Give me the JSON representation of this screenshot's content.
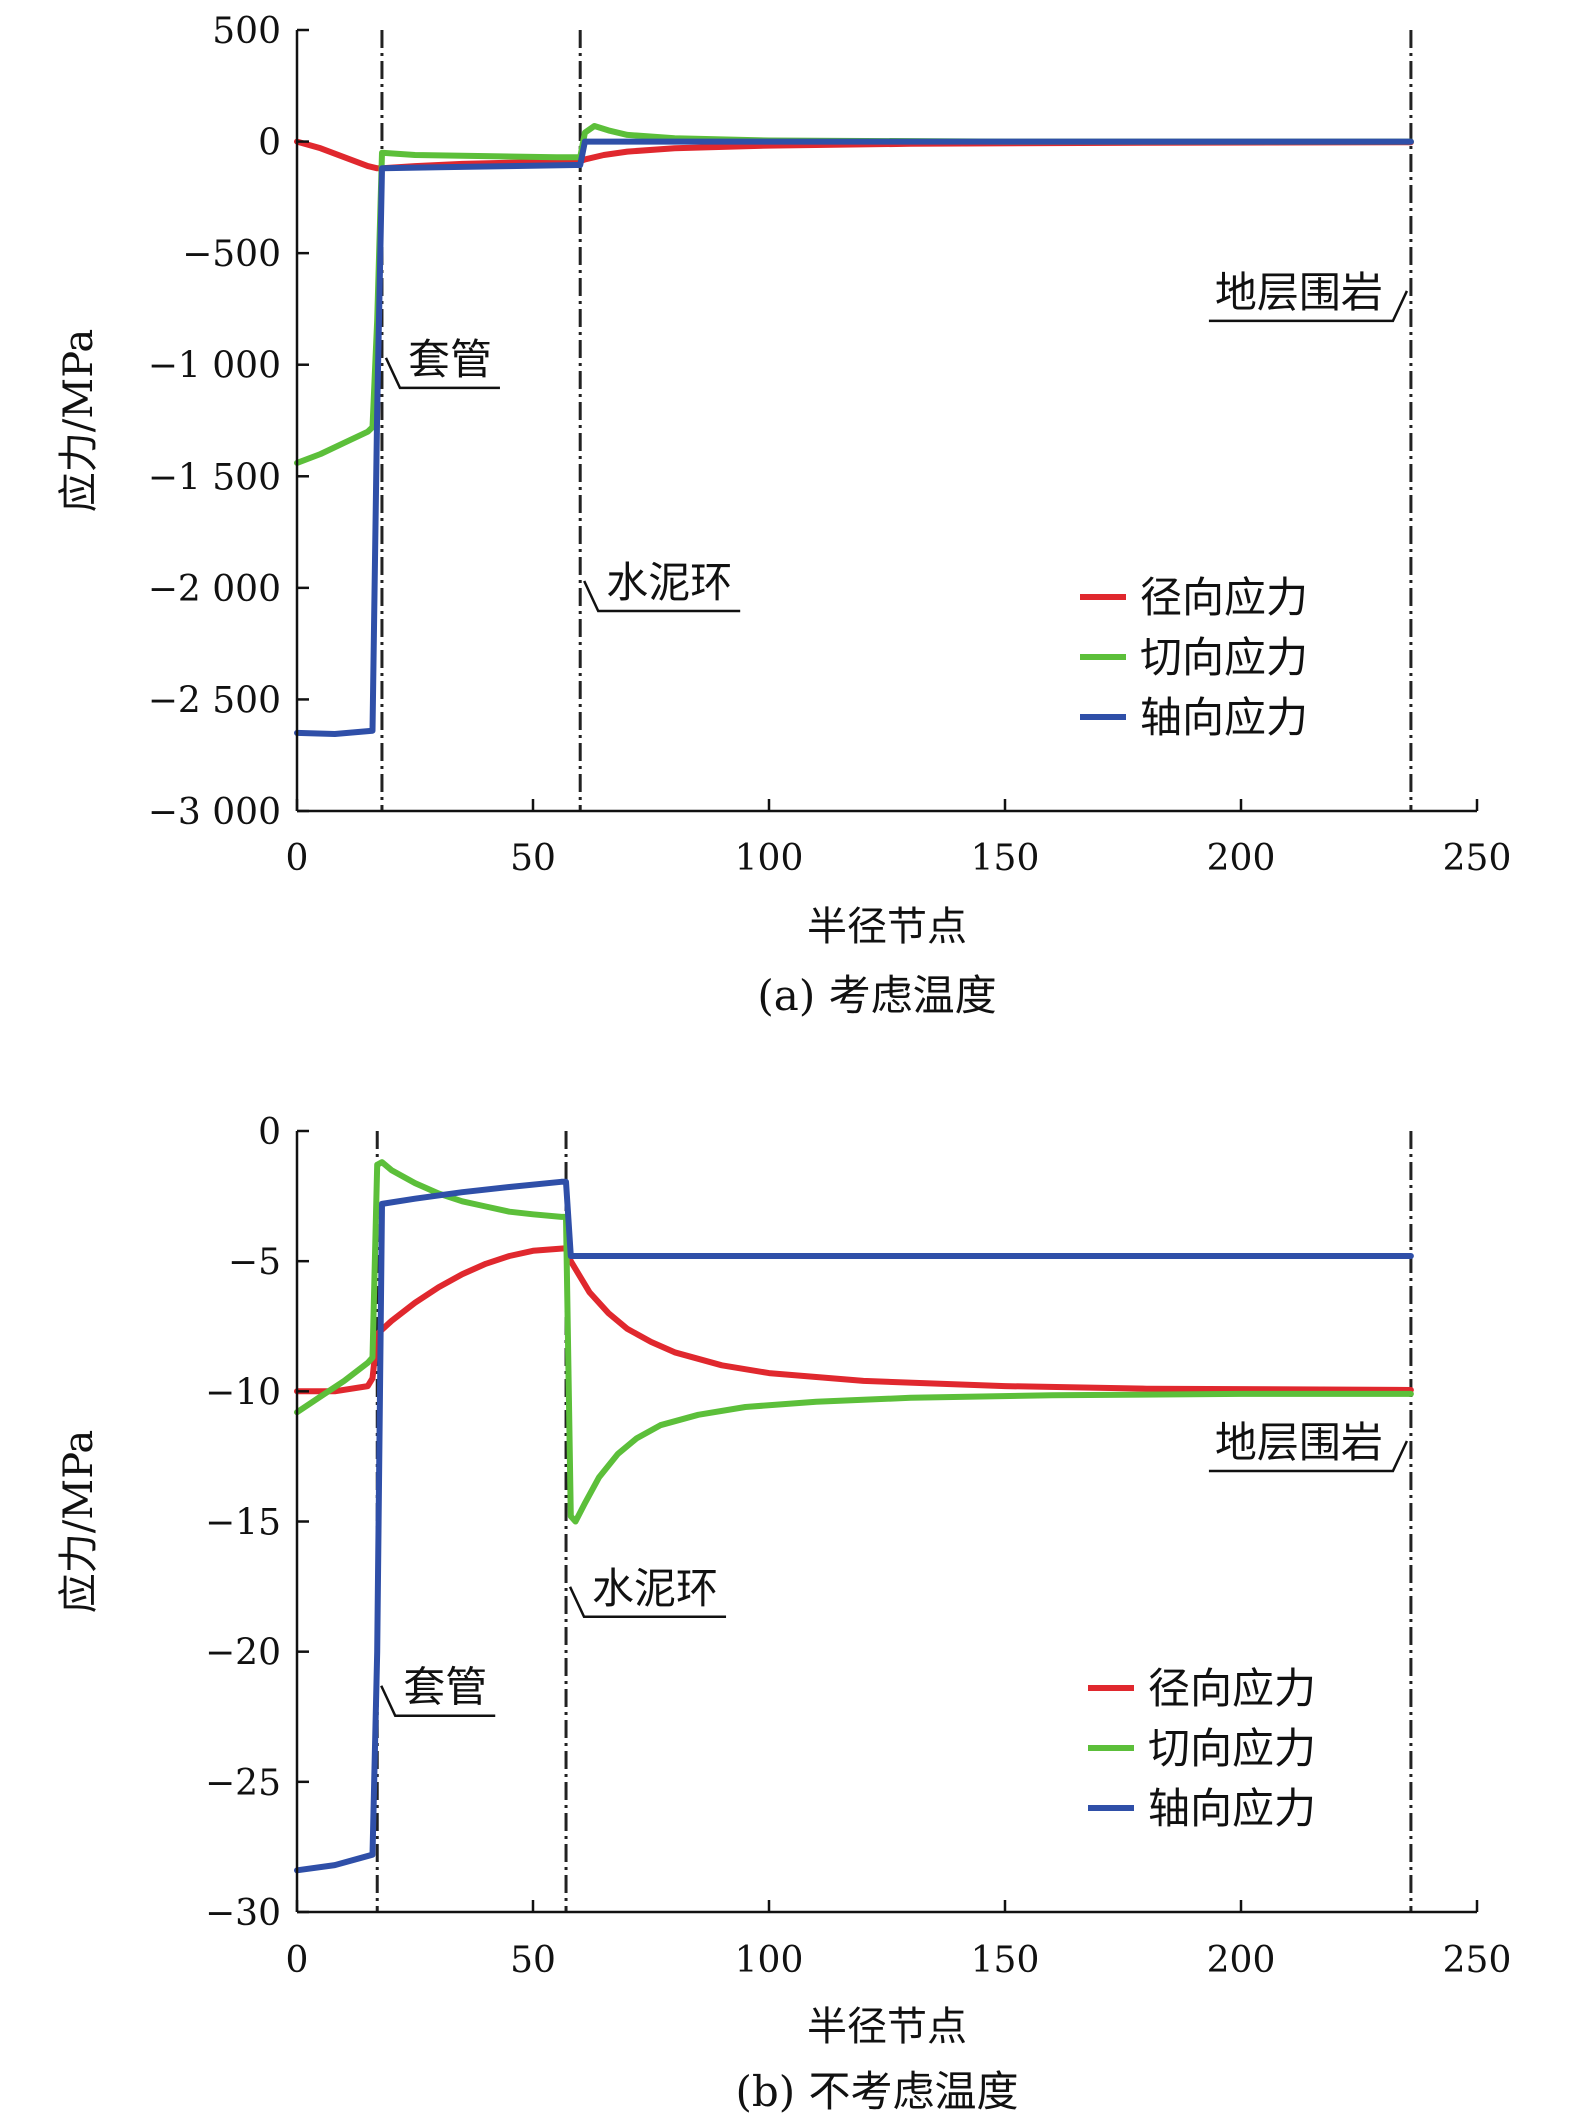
{
  "colors": {
    "radial": "#e0282e",
    "tangential": "#5cbf3a",
    "axial": "#2f4fa8",
    "axis": "#111111"
  },
  "chart_data": [
    {
      "type": "line",
      "caption": "(a) 考虑温度",
      "xlabel": "半径节点",
      "ylabel": "应力/MPa",
      "xlim": [
        0,
        250
      ],
      "ylim": [
        -3000,
        500
      ],
      "xticks": [
        0,
        50,
        100,
        150,
        200,
        250
      ],
      "xtick_labels": [
        "0",
        "50",
        "100",
        "150",
        "200",
        "250"
      ],
      "yticks": [
        500,
        0,
        -500,
        -1000,
        -1500,
        -2000,
        -2500,
        -3000
      ],
      "ytick_labels": [
        "500",
        "0",
        "−500",
        "−1 000",
        "−1 500",
        "−2 000",
        "−2 500",
        "−3 000"
      ],
      "grid": false,
      "legend_position": "right-middle",
      "boundaries": [
        18,
        60,
        236
      ],
      "annotations": [
        {
          "text": "套管",
          "x": 18,
          "y": -1050,
          "side": "right"
        },
        {
          "text": "水泥环",
          "x": 60,
          "y": -2050,
          "side": "right"
        },
        {
          "text": "地层围岩",
          "x": 236,
          "y": -750,
          "side": "left"
        }
      ],
      "series": [
        {
          "name": "径向应力",
          "color_key": "radial",
          "points": [
            [
              0,
              0
            ],
            [
              5,
              -30
            ],
            [
              10,
              -70
            ],
            [
              15,
              -110
            ],
            [
              17,
              -120
            ],
            [
              18,
              -120
            ],
            [
              25,
              -110
            ],
            [
              35,
              -100
            ],
            [
              45,
              -95
            ],
            [
              55,
              -90
            ],
            [
              60,
              -88
            ],
            [
              61,
              -80
            ],
            [
              65,
              -60
            ],
            [
              70,
              -45
            ],
            [
              80,
              -30
            ],
            [
              100,
              -18
            ],
            [
              130,
              -10
            ],
            [
              180,
              -5
            ],
            [
              236,
              -3
            ]
          ]
        },
        {
          "name": "切向应力",
          "color_key": "tangential",
          "points": [
            [
              0,
              -1440
            ],
            [
              5,
              -1400
            ],
            [
              10,
              -1350
            ],
            [
              15,
              -1300
            ],
            [
              16,
              -1280
            ],
            [
              17,
              -800
            ],
            [
              18,
              -50
            ],
            [
              25,
              -60
            ],
            [
              40,
              -65
            ],
            [
              55,
              -70
            ],
            [
              60,
              -70
            ],
            [
              61,
              40
            ],
            [
              63,
              70
            ],
            [
              66,
              50
            ],
            [
              70,
              30
            ],
            [
              80,
              15
            ],
            [
              100,
              5
            ],
            [
              150,
              0
            ],
            [
              236,
              0
            ]
          ]
        },
        {
          "name": "轴向应力",
          "color_key": "axial",
          "points": [
            [
              0,
              -2650
            ],
            [
              8,
              -2655
            ],
            [
              16,
              -2640
            ],
            [
              17,
              -1200
            ],
            [
              18,
              -120
            ],
            [
              30,
              -115
            ],
            [
              45,
              -110
            ],
            [
              59,
              -105
            ],
            [
              60,
              -105
            ],
            [
              61,
              0
            ],
            [
              236,
              0
            ]
          ]
        }
      ]
    },
    {
      "type": "line",
      "caption": "(b) 不考虑温度",
      "xlabel": "半径节点",
      "ylabel": "应力/MPa",
      "xlim": [
        0,
        250
      ],
      "ylim": [
        -30,
        0
      ],
      "xticks": [
        0,
        50,
        100,
        150,
        200,
        250
      ],
      "xtick_labels": [
        "0",
        "50",
        "100",
        "150",
        "200",
        "250"
      ],
      "yticks": [
        0,
        -5,
        -10,
        -15,
        -20,
        -25,
        -30
      ],
      "ytick_labels": [
        "0",
        "−5",
        "−10",
        "−15",
        "−20",
        "−25",
        "−30"
      ],
      "grid": false,
      "legend_position": "right-bottom",
      "boundaries": [
        17,
        57,
        236
      ],
      "annotations": [
        {
          "text": "套管",
          "x": 17,
          "y": -22,
          "side": "right"
        },
        {
          "text": "水泥环",
          "x": 57,
          "y": -18.2,
          "side": "right"
        },
        {
          "text": "地层围岩",
          "x": 236,
          "y": -12.6,
          "side": "left"
        }
      ],
      "series": [
        {
          "name": "径向应力",
          "color_key": "radial",
          "points": [
            [
              0,
              -10
            ],
            [
              8,
              -10
            ],
            [
              15,
              -9.8
            ],
            [
              16,
              -9.5
            ],
            [
              17,
              -7.8
            ],
            [
              20,
              -7.3
            ],
            [
              25,
              -6.6
            ],
            [
              30,
              -6.0
            ],
            [
              35,
              -5.5
            ],
            [
              40,
              -5.1
            ],
            [
              45,
              -4.8
            ],
            [
              50,
              -4.6
            ],
            [
              57,
              -4.5
            ],
            [
              58,
              -5.0
            ],
            [
              62,
              -6.2
            ],
            [
              66,
              -7.0
            ],
            [
              70,
              -7.6
            ],
            [
              75,
              -8.1
            ],
            [
              80,
              -8.5
            ],
            [
              90,
              -9.0
            ],
            [
              100,
              -9.3
            ],
            [
              120,
              -9.6
            ],
            [
              150,
              -9.8
            ],
            [
              180,
              -9.9
            ],
            [
              236,
              -9.95
            ]
          ]
        },
        {
          "name": "切向应力",
          "color_key": "tangential",
          "points": [
            [
              0,
              -10.8
            ],
            [
              5,
              -10.2
            ],
            [
              10,
              -9.6
            ],
            [
              15,
              -8.9
            ],
            [
              16,
              -8.7
            ],
            [
              17,
              -1.3
            ],
            [
              18,
              -1.2
            ],
            [
              20,
              -1.5
            ],
            [
              25,
              -2.0
            ],
            [
              30,
              -2.4
            ],
            [
              35,
              -2.7
            ],
            [
              40,
              -2.9
            ],
            [
              45,
              -3.1
            ],
            [
              50,
              -3.2
            ],
            [
              56,
              -3.3
            ],
            [
              57,
              -3.3
            ],
            [
              58,
              -14.8
            ],
            [
              59,
              -15.0
            ],
            [
              61,
              -14.3
            ],
            [
              64,
              -13.3
            ],
            [
              68,
              -12.4
            ],
            [
              72,
              -11.8
            ],
            [
              77,
              -11.3
            ],
            [
              85,
              -10.9
            ],
            [
              95,
              -10.6
            ],
            [
              110,
              -10.4
            ],
            [
              130,
              -10.25
            ],
            [
              160,
              -10.15
            ],
            [
              200,
              -10.1
            ],
            [
              236,
              -10.1
            ]
          ]
        },
        {
          "name": "轴向应力",
          "color_key": "axial",
          "points": [
            [
              0,
              -28.4
            ],
            [
              8,
              -28.2
            ],
            [
              16,
              -27.8
            ],
            [
              17,
              -20
            ],
            [
              18,
              -2.8
            ],
            [
              25,
              -2.6
            ],
            [
              35,
              -2.35
            ],
            [
              45,
              -2.15
            ],
            [
              56,
              -1.95
            ],
            [
              57,
              -1.95
            ],
            [
              58,
              -4.8
            ],
            [
              236,
              -4.8
            ]
          ]
        }
      ]
    }
  ]
}
